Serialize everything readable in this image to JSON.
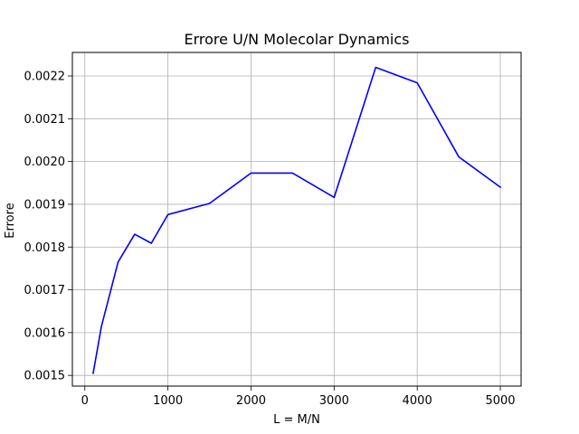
{
  "chart_data": {
    "type": "line",
    "title": "Errore U/N Molecolar Dynamics",
    "xlabel": "L = M/N",
    "ylabel": "Errore",
    "grid": true,
    "xlim": [
      -150,
      5250
    ],
    "ylim": [
      0.001475,
      0.002255
    ],
    "xticks": [
      0,
      1000,
      2000,
      3000,
      4000,
      5000
    ],
    "yticks": [
      0.0015,
      0.0016,
      0.0017,
      0.0018,
      0.0019,
      0.002,
      0.0021,
      0.0022
    ],
    "ytick_labels": [
      "0.0015",
      "0.0016",
      "0.0017",
      "0.0018",
      "0.0019",
      "0.0020",
      "0.0021",
      "0.0022"
    ],
    "series": [
      {
        "color": "#0000ff",
        "x": [
          100,
          200,
          400,
          600,
          800,
          1000,
          1500,
          2000,
          2500,
          3000,
          3500,
          4000,
          4500,
          5000
        ],
        "y": [
          0.001505,
          0.001615,
          0.001765,
          0.00183,
          0.001809,
          0.001876,
          0.001902,
          0.001973,
          0.001973,
          0.001916,
          0.00222,
          0.002184,
          0.002011,
          0.00194
        ]
      }
    ]
  }
}
